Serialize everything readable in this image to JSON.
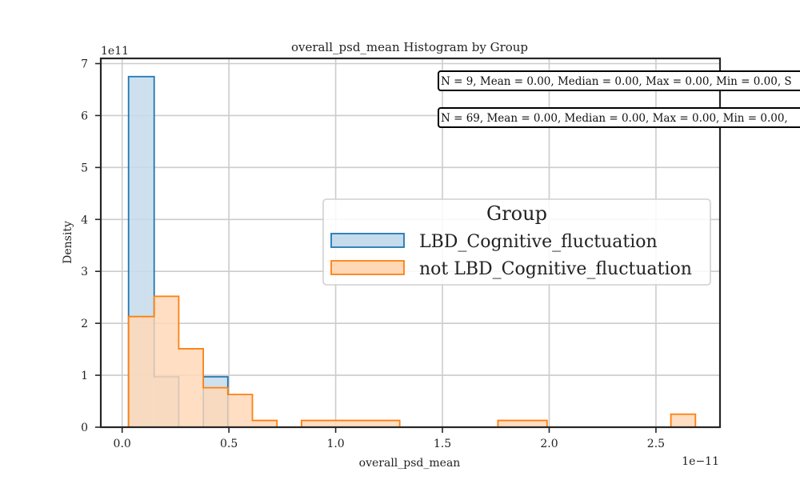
{
  "chart_data": {
    "type": "histogram",
    "title": "overall_psd_mean Histogram by Group",
    "xlabel": "overall_psd_mean",
    "ylabel": "Density",
    "x_multiplier": "1e−11",
    "y_multiplier": "1e11",
    "xlim": [
      -0.1,
      2.8
    ],
    "ylim": [
      0,
      7.1
    ],
    "xticks": [
      0.0,
      0.5,
      1.0,
      1.5,
      2.0,
      2.5
    ],
    "xtick_labels": [
      "0.0",
      "0.5",
      "1.0",
      "1.5",
      "2.0",
      "2.5"
    ],
    "yticks": [
      0,
      1,
      2,
      3,
      4,
      5,
      6,
      7
    ],
    "ytick_labels": [
      "0",
      "1",
      "2",
      "3",
      "4",
      "5",
      "6",
      "7"
    ],
    "grid": true,
    "legend": {
      "title": "Group",
      "placement": "center-right"
    },
    "series": [
      {
        "name": "LBD_Cognitive_fluctuation",
        "color": "#1f77b4",
        "fill": "#c5dbeb",
        "bins": [
          {
            "x0": 0.03,
            "x1": 0.15,
            "density": 6.75
          },
          {
            "x0": 0.15,
            "x1": 0.265,
            "density": 0.97
          },
          {
            "x0": 0.38,
            "x1": 0.495,
            "density": 0.97
          }
        ]
      },
      {
        "name": "not LBD_Cognitive_fluctuation",
        "color": "#ff7f0e",
        "fill": "#ffd8b8",
        "bins": [
          {
            "x0": 0.03,
            "x1": 0.15,
            "density": 2.13
          },
          {
            "x0": 0.15,
            "x1": 0.265,
            "density": 2.52
          },
          {
            "x0": 0.265,
            "x1": 0.38,
            "density": 1.51
          },
          {
            "x0": 0.38,
            "x1": 0.495,
            "density": 0.76
          },
          {
            "x0": 0.495,
            "x1": 0.61,
            "density": 0.63
          },
          {
            "x0": 0.61,
            "x1": 0.725,
            "density": 0.13
          },
          {
            "x0": 0.84,
            "x1": 1.3,
            "density": 0.13
          },
          {
            "x0": 1.76,
            "x1": 1.99,
            "density": 0.13
          },
          {
            "x0": 2.57,
            "x1": 2.685,
            "density": 0.25
          }
        ]
      }
    ],
    "annotations": [
      {
        "text": "N = 9, Mean = 0.00, Median = 0.00, Max = 0.00, Min = 0.00, S"
      },
      {
        "text": "N = 69, Mean = 0.00, Median = 0.00, Max = 0.00, Min = 0.00,"
      }
    ]
  }
}
